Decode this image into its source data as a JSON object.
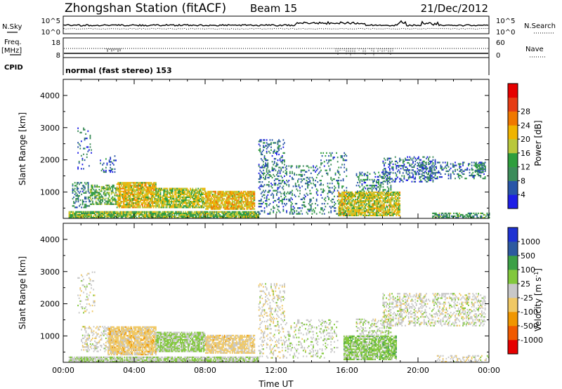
{
  "header": {
    "station": "Zhongshan Station (fitACF)",
    "beam": "Beam 15",
    "date": "21/Dec/2012"
  },
  "panels": {
    "noise": {
      "left_label": "N.Sky",
      "right_label": "N.Search",
      "left_ticks": [
        "10^5",
        "10^0"
      ],
      "right_ticks": [
        "10^5",
        "10^0"
      ]
    },
    "freq": {
      "left_label_1": "Freq.",
      "left_label_2": "[MHz]",
      "left_ticks": [
        "18",
        "8"
      ],
      "right_label": "Nave",
      "right_ticks": [
        "60",
        "0"
      ]
    },
    "cpid": {
      "label": "CPID",
      "text": "normal (fast stereo) 153"
    }
  },
  "axes": {
    "ylabel": "Slant Range [km]",
    "xlabel": "Time UT",
    "x_ticks": [
      "00:00",
      "04:00",
      "08:00",
      "12:00",
      "16:00",
      "20:00",
      "00:00"
    ],
    "y_ticks": [
      "1000",
      "2000",
      "3000",
      "4000"
    ]
  },
  "colors": {
    "power": [
      "#1e1ee6",
      "#2855a8",
      "#3c8c5a",
      "#2e9e3c",
      "#b9c83c",
      "#f0b400",
      "#f07800",
      "#e63c14",
      "#e60000"
    ],
    "velocity": [
      "#e60000",
      "#f05a00",
      "#f09600",
      "#f0c864",
      "#c8c8c8",
      "#82c83c",
      "#3ca046",
      "#2d5aa0",
      "#1e32d2"
    ]
  },
  "chart_data": [
    {
      "type": "heatmap",
      "title": "",
      "quantity": "Power",
      "colorbar_label": "Power [dB]",
      "colorbar_ticks": [
        "4",
        "8",
        "12",
        "16",
        "20",
        "24",
        "28"
      ],
      "colorbar_range": [
        0,
        32
      ],
      "xlabel": "Time UT",
      "ylabel": "Slant Range [km]",
      "xlim_hours": [
        0,
        24
      ],
      "ylim_km": [
        180,
        4500
      ],
      "regions": [
        {
          "t": [
            0.3,
            11.0
          ],
          "r": [
            180,
            400
          ],
          "v": 14,
          "d": 0.9
        },
        {
          "t": [
            0.5,
            1.5
          ],
          "r": [
            500,
            1300
          ],
          "v": 8,
          "d": 0.35
        },
        {
          "t": [
            1.5,
            3.0
          ],
          "r": [
            600,
            1200
          ],
          "v": 12,
          "d": 0.6
        },
        {
          "t": [
            3.0,
            5.2
          ],
          "r": [
            500,
            1300
          ],
          "v": 18,
          "d": 0.85
        },
        {
          "t": [
            5.2,
            8.0
          ],
          "r": [
            500,
            1100
          ],
          "v": 16,
          "d": 0.8
        },
        {
          "t": [
            8.0,
            10.8
          ],
          "r": [
            450,
            1000
          ],
          "v": 19,
          "d": 0.85
        },
        {
          "t": [
            0.8,
            1.6
          ],
          "r": [
            1700,
            3000
          ],
          "v": 6,
          "d": 0.12
        },
        {
          "t": [
            2.0,
            3.0
          ],
          "r": [
            1600,
            2200
          ],
          "v": 6,
          "d": 0.15
        },
        {
          "t": [
            11.0,
            12.5
          ],
          "r": [
            300,
            2600
          ],
          "v": 7,
          "d": 0.28
        },
        {
          "t": [
            12.5,
            14.5
          ],
          "r": [
            300,
            1800
          ],
          "v": 8,
          "d": 0.2
        },
        {
          "t": [
            14.5,
            16.0
          ],
          "r": [
            300,
            2200
          ],
          "v": 8,
          "d": 0.18
        },
        {
          "t": [
            15.5,
            19.0
          ],
          "r": [
            250,
            1000
          ],
          "v": 17,
          "d": 0.8
        },
        {
          "t": [
            16.5,
            18.5
          ],
          "r": [
            1000,
            1600
          ],
          "v": 8,
          "d": 0.35
        },
        {
          "t": [
            18.0,
            21.0
          ],
          "r": [
            1300,
            2100
          ],
          "v": 6,
          "d": 0.3
        },
        {
          "t": [
            20.0,
            23.8
          ],
          "r": [
            1400,
            1900
          ],
          "v": 7,
          "d": 0.3
        },
        {
          "t": [
            23.2,
            23.8
          ],
          "r": [
            1600,
            1900
          ],
          "v": 9,
          "d": 0.7
        },
        {
          "t": [
            20.8,
            24.0
          ],
          "r": [
            180,
            350
          ],
          "v": 10,
          "d": 0.6
        }
      ]
    },
    {
      "type": "heatmap",
      "title": "",
      "quantity": "Velocity",
      "colorbar_label": "Velocity [m s^-1]",
      "colorbar_ticks": [
        "1000",
        "500",
        "100",
        "25",
        "-25",
        "-100",
        "-500",
        "-1000"
      ],
      "colorbar_range": [
        -1500,
        1500
      ],
      "xlabel": "Time UT",
      "ylabel": "Slant Range [km]",
      "xlim_hours": [
        0,
        24
      ],
      "ylim_km": [
        180,
        4500
      ],
      "regions": [
        {
          "t": [
            0.3,
            11.0
          ],
          "r": [
            180,
            320
          ],
          "v": 120,
          "d": 0.85
        },
        {
          "t": [
            1.0,
            2.5
          ],
          "r": [
            500,
            1300
          ],
          "v": -40,
          "d": 0.3
        },
        {
          "t": [
            2.5,
            5.2
          ],
          "r": [
            400,
            1300
          ],
          "v": -300,
          "d": 0.85
        },
        {
          "t": [
            5.2,
            8.0
          ],
          "r": [
            500,
            1100
          ],
          "v": 200,
          "d": 0.85
        },
        {
          "t": [
            8.0,
            10.8
          ],
          "r": [
            450,
            1000
          ],
          "v": -250,
          "d": 0.8
        },
        {
          "t": [
            0.8,
            1.8
          ],
          "r": [
            1700,
            3000
          ],
          "v": 0,
          "d": 0.15
        },
        {
          "t": [
            11.0,
            12.5
          ],
          "r": [
            300,
            2600
          ],
          "v": -60,
          "d": 0.25
        },
        {
          "t": [
            12.5,
            15.5
          ],
          "r": [
            300,
            1500
          ],
          "v": 70,
          "d": 0.18
        },
        {
          "t": [
            15.8,
            18.8
          ],
          "r": [
            250,
            1000
          ],
          "v": 300,
          "d": 0.8
        },
        {
          "t": [
            16.5,
            18.5
          ],
          "r": [
            1000,
            1500
          ],
          "v": 60,
          "d": 0.3
        },
        {
          "t": [
            18.0,
            23.8
          ],
          "r": [
            1300,
            2300
          ],
          "v": 0,
          "d": 0.35
        },
        {
          "t": [
            21.0,
            24.0
          ],
          "r": [
            180,
            400
          ],
          "v": -40,
          "d": 0.35
        }
      ]
    }
  ]
}
